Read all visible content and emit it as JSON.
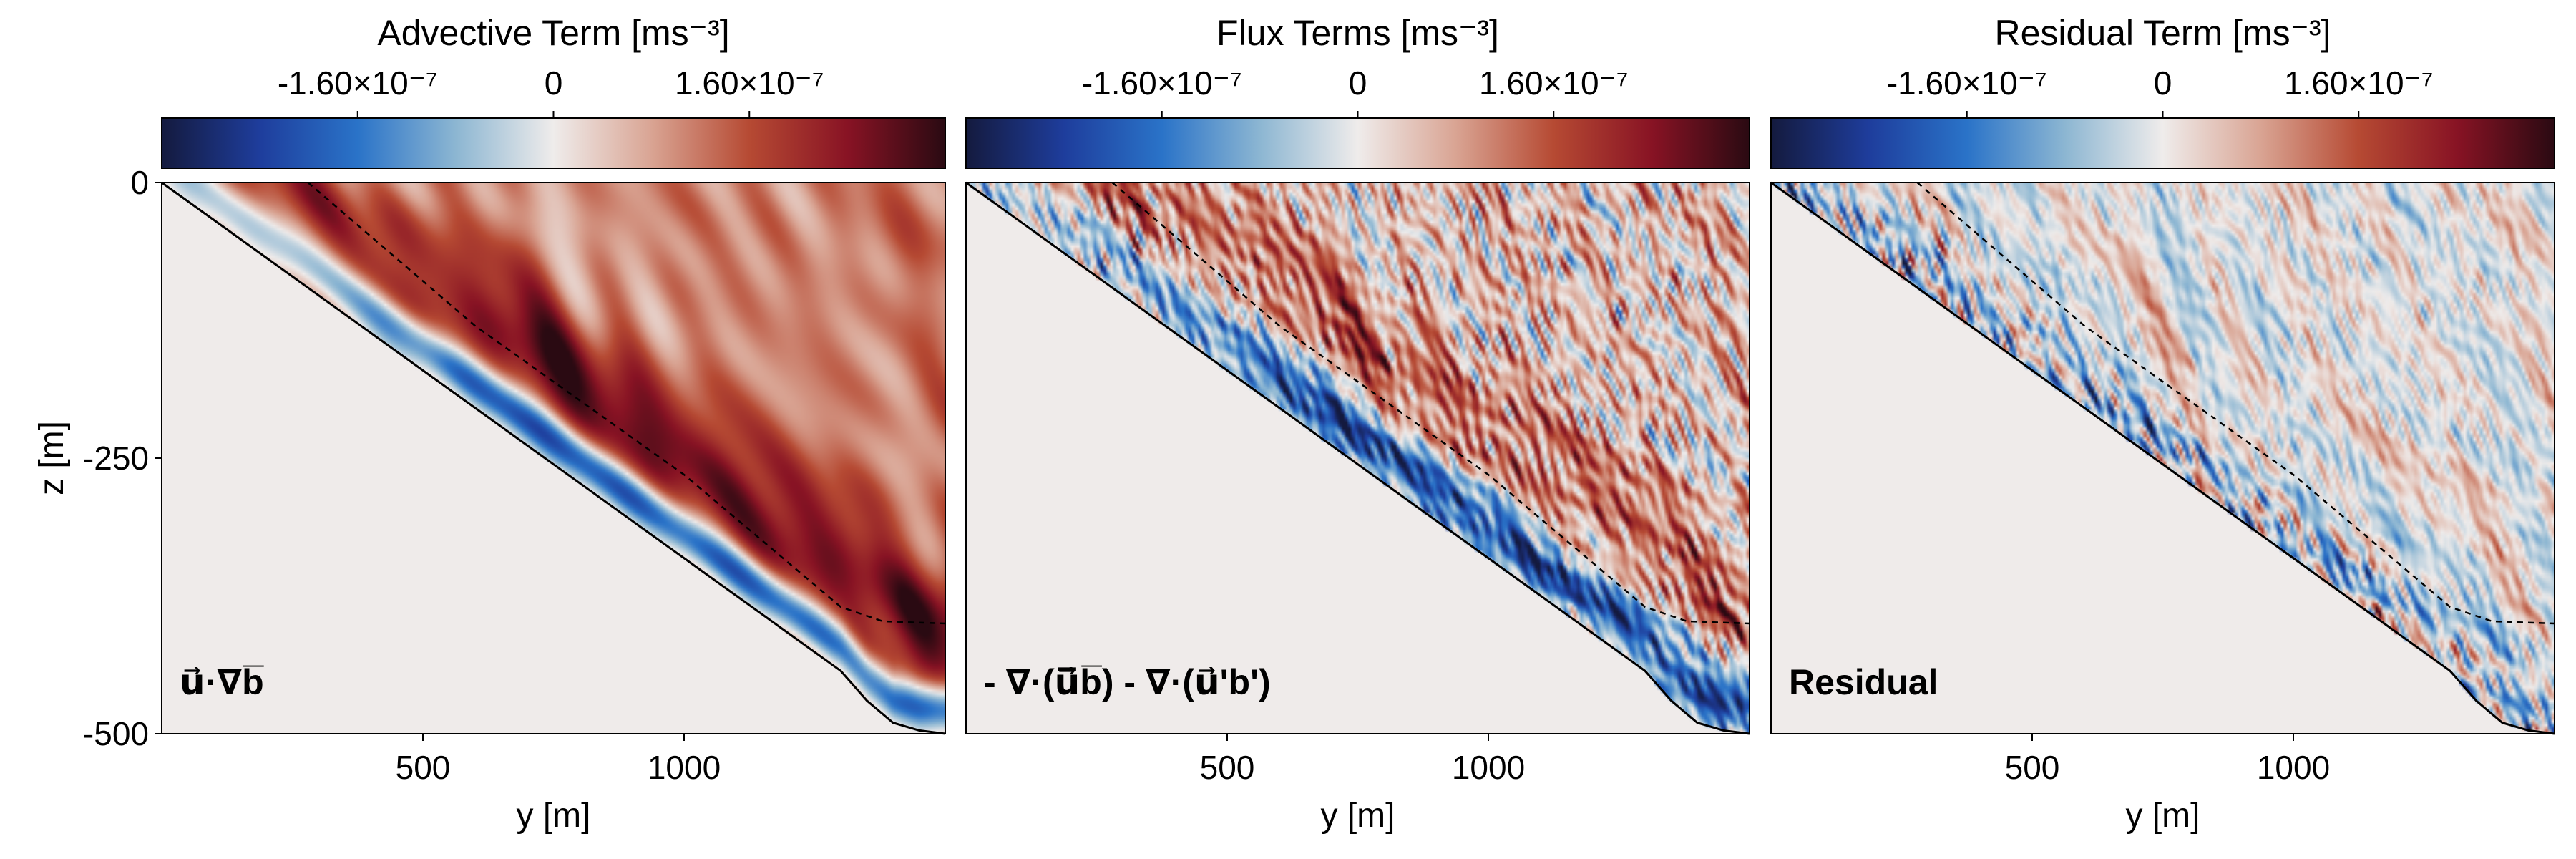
{
  "chart_data": [
    {
      "type": "heatmap",
      "title": "Advective Term [ms⁻³]",
      "panel_label": "u⃗·∇b̅",
      "xlabel": "y [m]",
      "ylabel": "z [m]",
      "xticks": [
        "500",
        "1000"
      ],
      "yticks": [
        "0",
        "-250",
        "-500"
      ],
      "colorbar_ticks": [
        "-1.60×10⁻⁷",
        "0",
        "1.60×10⁻⁷"
      ],
      "colorbar_range": [
        -3.2e-07,
        3.2e-07
      ],
      "xlim": [
        0,
        1500
      ],
      "ylim": [
        -500,
        0
      ],
      "slope_bottom_line": [
        [
          0,
          0
        ],
        [
          1300,
          -443
        ],
        [
          1350,
          -470
        ],
        [
          1400,
          -490
        ],
        [
          1450,
          -497
        ],
        [
          1500,
          -500
        ]
      ],
      "dashed_isopycnal": [
        [
          280,
          0
        ],
        [
          600,
          -130
        ],
        [
          1000,
          -265
        ],
        [
          1200,
          -345
        ],
        [
          1300,
          -385
        ],
        [
          1380,
          -398
        ],
        [
          1500,
          -400
        ]
      ],
      "field_pattern": "strong negative (blue) layer hugging the slope, positive (red) above, weakly positive interior",
      "colormap": [
        "#141a3e",
        "#1e3d9c",
        "#2a73c8",
        "#8cb6d2",
        "#efeceb",
        "#d9a493",
        "#b64a33",
        "#881324",
        "#2a0a12"
      ]
    },
    {
      "type": "heatmap",
      "title": "Flux Terms [ms⁻³]",
      "panel_label": "- ∇·(u⃗̅b̅) - ∇·(u⃗'b')",
      "xlabel": "y [m]",
      "xticks": [
        "500",
        "1000"
      ],
      "colorbar_ticks": [
        "-1.60×10⁻⁷",
        "0",
        "1.60×10⁻⁷"
      ],
      "colorbar_range": [
        -3.2e-07,
        3.2e-07
      ],
      "xlim": [
        0,
        1500
      ],
      "ylim": [
        -500,
        0
      ],
      "field_pattern": "mirror of the advective term with turbulent fine structure"
    },
    {
      "type": "heatmap",
      "title": "Residual Term [ms⁻³]",
      "panel_label": "Residual",
      "xlabel": "y [m]",
      "xticks": [
        "500",
        "1000"
      ],
      "colorbar_ticks": [
        "-1.60×10⁻⁷",
        "0",
        "1.60×10⁻⁷"
      ],
      "colorbar_range": [
        -3.2e-07,
        3.2e-07
      ],
      "xlim": [
        0,
        1500
      ],
      "ylim": [
        -500,
        0
      ],
      "field_pattern": "small-scale noise of both signs, strongest near the slope"
    }
  ]
}
